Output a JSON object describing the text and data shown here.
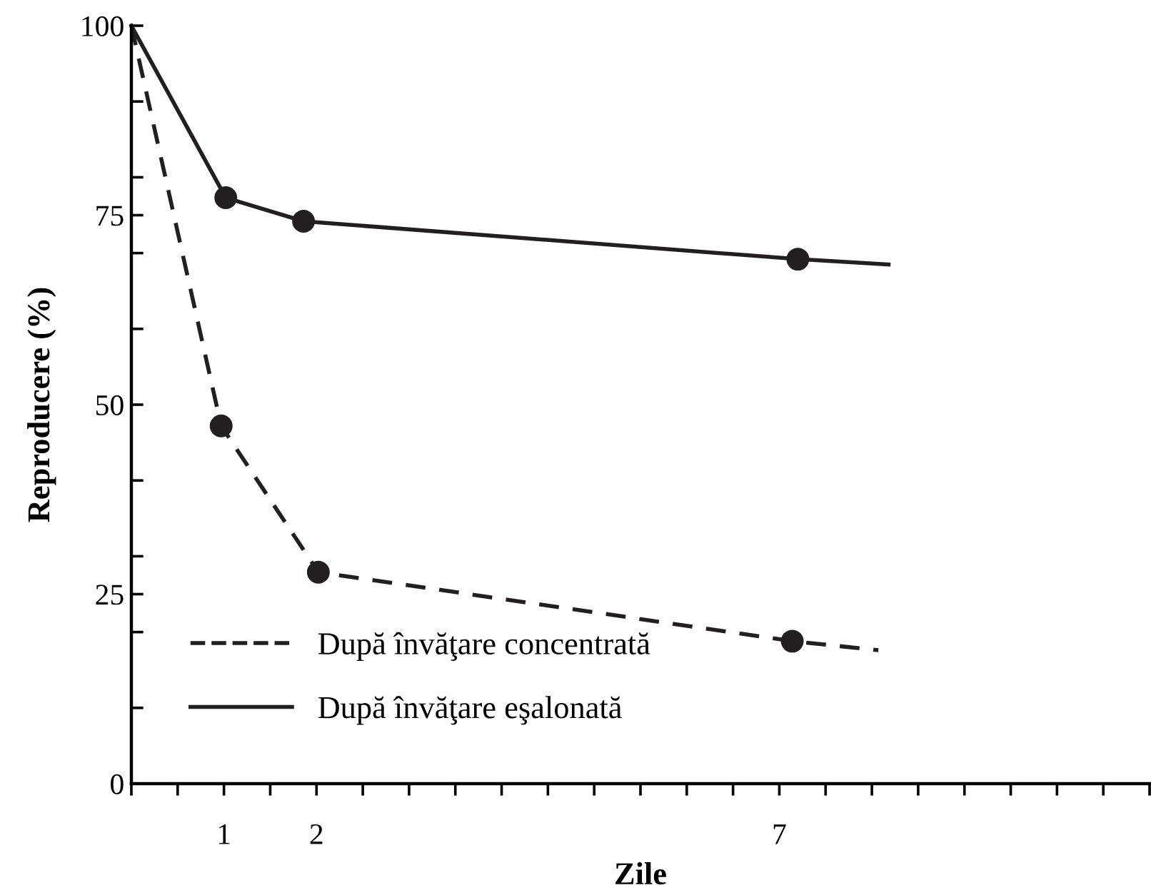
{
  "chart_data": {
    "type": "line",
    "xlabel": "Zile",
    "ylabel": "Reproducere (%)",
    "series": [
      {
        "name": "După învăţare concentrată",
        "color": "#231f20",
        "line_style": "dashed",
        "marker": "none",
        "x": [
          0,
          0.97,
          2.02,
          7.14,
          8.07
        ],
        "values": [
          100,
          47.2,
          27.9,
          18.8,
          17.6
        ]
      },
      {
        "name": "După învăţare eşalonată",
        "color": "#231f20",
        "line_style": "solid",
        "marker": "none",
        "x": [
          0,
          1.02,
          1.86,
          7.2,
          8.18
        ],
        "values": [
          100,
          77.3,
          74.2,
          69.2,
          68.5
        ]
      },
      {
        "type": "scatter",
        "color": "#231f20",
        "marker": "circle",
        "x": [
          0.97,
          2.02,
          7.14
        ],
        "values": [
          47.2,
          27.9,
          18.8
        ]
      },
      {
        "type": "scatter",
        "color": "#231f20",
        "marker": "circle",
        "x": [
          1.02,
          1.86,
          7.2
        ],
        "values": [
          77.3,
          74.2,
          69.2
        ]
      }
    ],
    "xlim": [
      0,
      11
    ],
    "ylim": [
      0,
      100
    ],
    "xticks": [
      {
        "value": 0,
        "label": null
      },
      {
        "value": 0.5,
        "label": null
      },
      1,
      {
        "value": 1.5,
        "label": null
      },
      2,
      {
        "value": 2.5,
        "label": null
      },
      {
        "value": 3,
        "label": null
      },
      {
        "value": 3.5,
        "label": null
      },
      {
        "value": 4,
        "label": null
      },
      {
        "value": 4.5,
        "label": null
      },
      {
        "value": 5,
        "label": null
      },
      {
        "value": 5.5,
        "label": null
      },
      {
        "value": 6,
        "label": null
      },
      {
        "value": 6.5,
        "label": null
      },
      7,
      {
        "value": 7.5,
        "label": null
      },
      {
        "value": 8,
        "label": null
      },
      {
        "value": 8.5,
        "label": null
      },
      {
        "value": 9,
        "label": null
      },
      {
        "value": 9.5,
        "label": null
      },
      {
        "value": 10,
        "label": null
      },
      {
        "value": 10.5,
        "label": null
      },
      {
        "value": 11,
        "label": null
      }
    ],
    "yticks": [
      0,
      {
        "value": 10,
        "label": null
      },
      {
        "value": 20,
        "label": null
      },
      25,
      {
        "value": 30,
        "label": null
      },
      {
        "value": 40,
        "label": null
      },
      50,
      {
        "value": 60,
        "label": null
      },
      {
        "value": 70,
        "label": null
      },
      75,
      {
        "value": 80,
        "label": null
      },
      {
        "value": 90,
        "label": null
      },
      100
    ],
    "grid": false,
    "legend": "bottom left"
  }
}
